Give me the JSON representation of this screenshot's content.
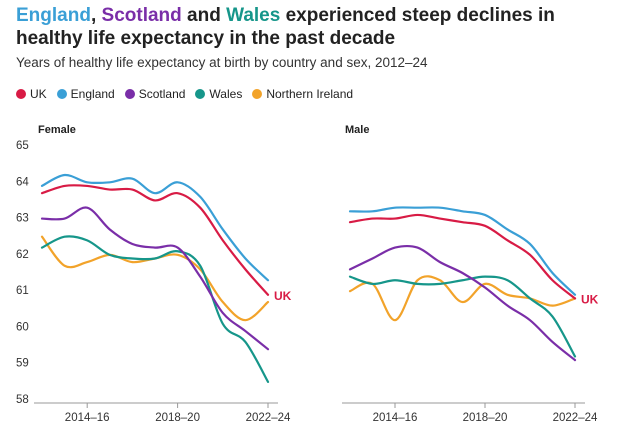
{
  "header": {
    "title_parts": [
      {
        "text": "England",
        "color": "#3a9fd6"
      },
      {
        "text": ", "
      },
      {
        "text": "Scotland",
        "color": "#7a2ea8"
      },
      {
        "text": " and "
      },
      {
        "text": "Wales",
        "color": "#16968a"
      },
      {
        "text": " experienced steep declines in healthy life expectancy in the past decade"
      }
    ],
    "subtitle": "Years of healthy life expectancy at birth by country and sex, 2012–24"
  },
  "chart_data": [
    {
      "type": "line",
      "title": "Female",
      "annotation": "UK",
      "categories": [
        null,
        null,
        "2014–16",
        null,
        null,
        null,
        "2018–20",
        null,
        null,
        null,
        "2022–24"
      ],
      "ylim": [
        58,
        65
      ],
      "yticks": [
        58,
        59,
        60,
        61,
        62,
        63,
        64,
        65
      ],
      "series": [
        {
          "name": "UK",
          "color": "#d81b45",
          "values": [
            63.7,
            63.9,
            63.9,
            63.8,
            63.8,
            63.5,
            63.7,
            63.3,
            62.4,
            61.6,
            60.9
          ]
        },
        {
          "name": "England",
          "color": "#3a9fd6",
          "values": [
            63.9,
            64.2,
            64.0,
            64.0,
            64.1,
            63.7,
            64.0,
            63.6,
            62.7,
            61.9,
            61.3
          ]
        },
        {
          "name": "Scotland",
          "color": "#7a2ea8",
          "values": [
            63.0,
            63.0,
            63.3,
            62.7,
            62.3,
            62.2,
            62.2,
            61.4,
            60.4,
            59.9,
            59.4
          ]
        },
        {
          "name": "Wales",
          "color": "#16968a",
          "values": [
            62.2,
            62.5,
            62.4,
            62.0,
            61.9,
            61.9,
            62.1,
            61.7,
            60.1,
            59.6,
            58.5
          ]
        },
        {
          "name": "Northern Ireland",
          "color": "#f2a32a",
          "values": [
            62.5,
            61.7,
            61.8,
            62.0,
            61.8,
            61.9,
            62.0,
            61.6,
            60.7,
            60.2,
            60.7
          ]
        }
      ]
    },
    {
      "type": "line",
      "title": "Male",
      "annotation": "UK",
      "categories": [
        null,
        null,
        "2014–16",
        null,
        null,
        null,
        "2018–20",
        null,
        null,
        null,
        "2022–24"
      ],
      "ylim": [
        58,
        65
      ],
      "series": [
        {
          "name": "UK",
          "color": "#d81b45",
          "values": [
            62.9,
            63.0,
            63.0,
            63.1,
            63.0,
            62.9,
            62.8,
            62.4,
            62.0,
            61.3,
            60.8
          ]
        },
        {
          "name": "England",
          "color": "#3a9fd6",
          "values": [
            63.2,
            63.2,
            63.3,
            63.3,
            63.3,
            63.2,
            63.1,
            62.7,
            62.3,
            61.5,
            60.9
          ]
        },
        {
          "name": "Scotland",
          "color": "#7a2ea8",
          "values": [
            61.6,
            61.9,
            62.2,
            62.2,
            61.8,
            61.5,
            61.1,
            60.6,
            60.2,
            59.6,
            59.1
          ]
        },
        {
          "name": "Wales",
          "color": "#16968a",
          "values": [
            61.4,
            61.2,
            61.3,
            61.2,
            61.2,
            61.3,
            61.4,
            61.3,
            60.8,
            60.3,
            59.2
          ]
        },
        {
          "name": "Northern Ireland",
          "color": "#f2a32a",
          "values": [
            61.0,
            61.2,
            60.2,
            61.3,
            61.3,
            60.7,
            61.2,
            60.9,
            60.8,
            60.6,
            60.8
          ]
        }
      ]
    }
  ]
}
